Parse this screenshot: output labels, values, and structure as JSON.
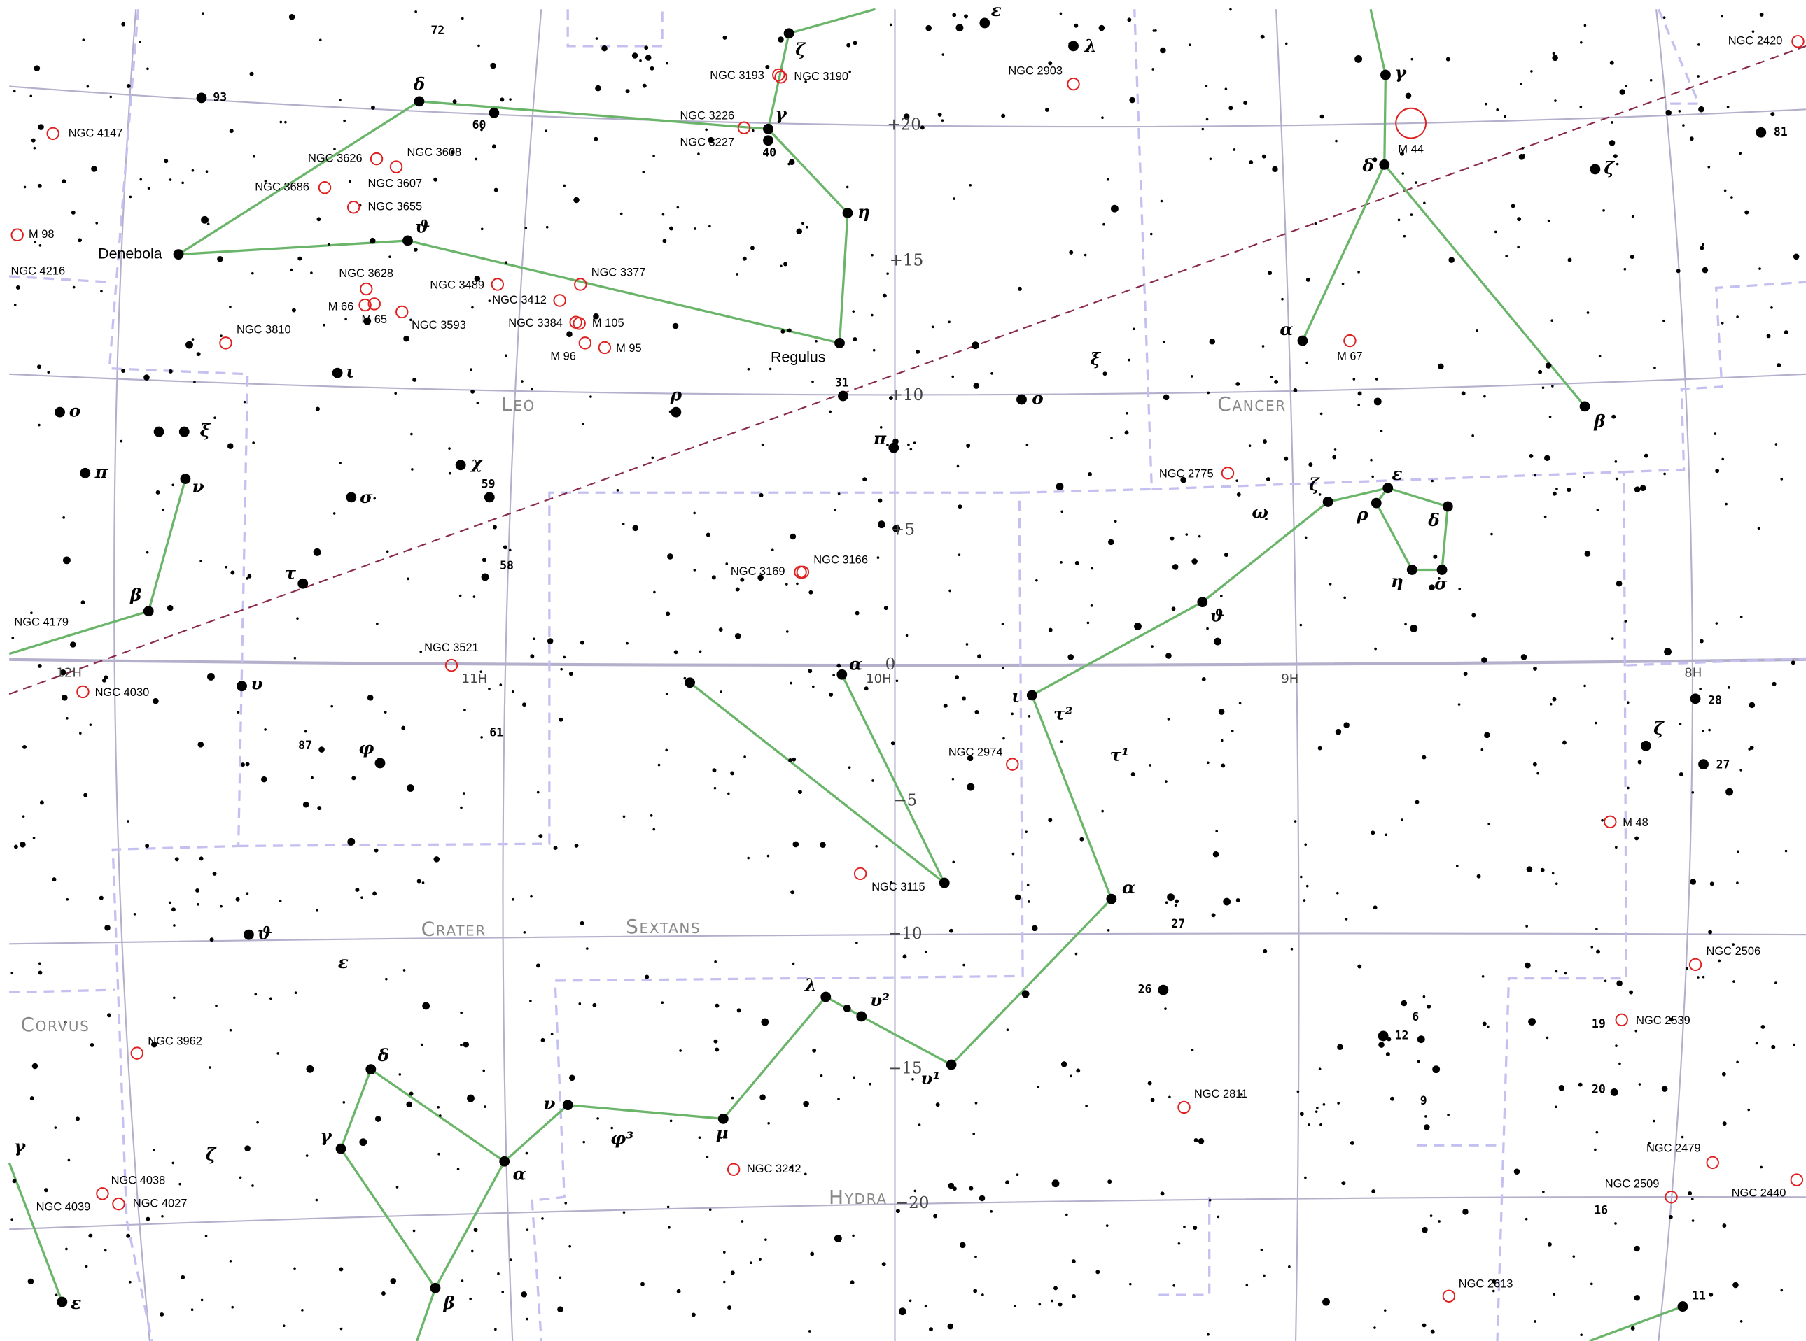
{
  "constellations": [
    "Leo",
    "Cancer",
    "Crater",
    "Sextans",
    "Hydra",
    "Corvus"
  ],
  "star_names": [
    "Denebola",
    "Regulus"
  ],
  "objects": [
    "NGC 4147",
    "M 98",
    "NGC 4216",
    "NGC 3626",
    "NGC 3608",
    "NGC 3686",
    "NGC 3607",
    "NGC 3655",
    "NGC 3628",
    "M 66",
    "M 65",
    "NGC 3593",
    "NGC 3810",
    "NGC 3489",
    "NGC 3412",
    "NGC 3377",
    "NGC 3384",
    "M 105",
    "M 96",
    "M 95",
    "NGC 3193",
    "NGC 3190",
    "NGC 3226",
    "NGC 3227",
    "NGC 2903",
    "M 44",
    "M 67",
    "NGC 2775",
    "NGC 3169",
    "NGC 3166",
    "NGC 4179",
    "NGC 3521",
    "NGC 4030",
    "NGC 2974",
    "NGC 3115",
    "M 48",
    "NGC 2506",
    "NGC 2539",
    "NGC 3962",
    "NGC 2811",
    "NGC 3242",
    "NGC 4038",
    "NGC 4027",
    "NGC 4039",
    "NGC 2479",
    "NGC 2509",
    "NGC 2440",
    "NGC 2613",
    "NGC 2420"
  ],
  "stars": [
    "δ",
    "γ",
    "ζ",
    "η",
    "ϑ",
    "ρ",
    "ι",
    "ο",
    "ξ",
    "π",
    "ν",
    "σ",
    "χ",
    "τ",
    "β",
    "υ",
    "φ",
    "ϑ",
    "ε",
    "δ",
    "γ",
    "ζ",
    "α",
    "β",
    "γ",
    "ε",
    "ν",
    "φ³",
    "μ",
    "λ",
    "υ²",
    "υ¹",
    "α",
    "π",
    "ο",
    "ξ",
    "ε",
    "λ",
    "ι",
    "τ²",
    "τ¹",
    "α",
    "ω",
    "ζ",
    "ε",
    "ρ",
    "δ",
    "η",
    "σ",
    "ϑ",
    "α",
    "β",
    "γ",
    "δ",
    "ζ",
    "ζ"
  ],
  "numbers": [
    "72",
    "93",
    "60",
    "40",
    "31",
    "59",
    "58",
    "61",
    "87",
    "27",
    "26",
    "6",
    "12",
    "9",
    "28",
    "27",
    "19",
    "20",
    "16",
    "11",
    "81"
  ],
  "declination_labels": [
    "+20",
    "+15",
    "+10",
    "+5",
    "0",
    "−5",
    "−10",
    "−15",
    "−20"
  ],
  "ra_labels": [
    "12H",
    "11H",
    "10H",
    "9H",
    "8H"
  ]
}
